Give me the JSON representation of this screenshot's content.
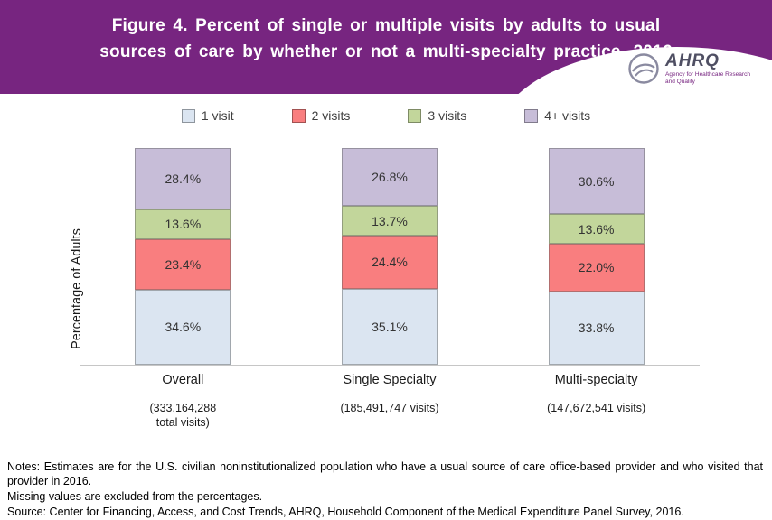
{
  "header": {
    "title_line1": "Figure 4. Percent of single or multiple visits by adults to usual",
    "title_line2": "sources of care by whether or not a multi-specialty practice, 2016",
    "accent_color": "#772580",
    "logo": {
      "name": "AHRQ",
      "tagline": "Agency for Healthcare Research and Quality"
    }
  },
  "legend": [
    {
      "label": "1 visit",
      "color": "#dbe5f1"
    },
    {
      "label": "2 visits",
      "color": "#f97e7f"
    },
    {
      "label": "3 visits",
      "color": "#c2d69b"
    },
    {
      "label": "4+ visits",
      "color": "#c7bdd8"
    }
  ],
  "chart_data": {
    "type": "bar",
    "subtype": "stacked-percent",
    "title": "Figure 4. Percent of single or multiple visits by adults to usual sources of care by whether or not a multi-specialty practice, 2016",
    "categories": [
      "Overall",
      "Single Specialty",
      "Multi-specialty"
    ],
    "category_sublabels": [
      "(333,164,288\ntotal visits)",
      "(185,491,747 visits)",
      "(147,672,541 visits)"
    ],
    "series": [
      {
        "name": "1 visit",
        "color": "#dbe5f1",
        "values": [
          34.6,
          35.1,
          33.8
        ]
      },
      {
        "name": "2 visits",
        "color": "#f97e7f",
        "values": [
          23.4,
          24.4,
          22.0
        ]
      },
      {
        "name": "3 visits",
        "color": "#c2d69b",
        "values": [
          13.6,
          13.7,
          13.6
        ]
      },
      {
        "name": "4+ visits",
        "color": "#c7bdd8",
        "values": [
          28.4,
          26.8,
          30.6
        ]
      }
    ],
    "stack_order_bottom_to_top": [
      "1 visit",
      "2 visits",
      "3 visits",
      "4+ visits"
    ],
    "xlabel": "",
    "ylabel": "Percentage of Adults",
    "ylim": [
      0,
      100
    ],
    "value_suffix": "%",
    "grid": false,
    "legend_position": "top-center"
  },
  "notes": {
    "line1": "Notes: Estimates are for the U.S. civilian noninstitutionalized population who have a usual source of care office-based provider and who visited that provider in 2016.",
    "line2": "Missing values are excluded from the percentages.",
    "line3": "Source: Center for Financing, Access, and Cost Trends, AHRQ, Household Component of the Medical Expenditure Panel Survey, 2016."
  }
}
